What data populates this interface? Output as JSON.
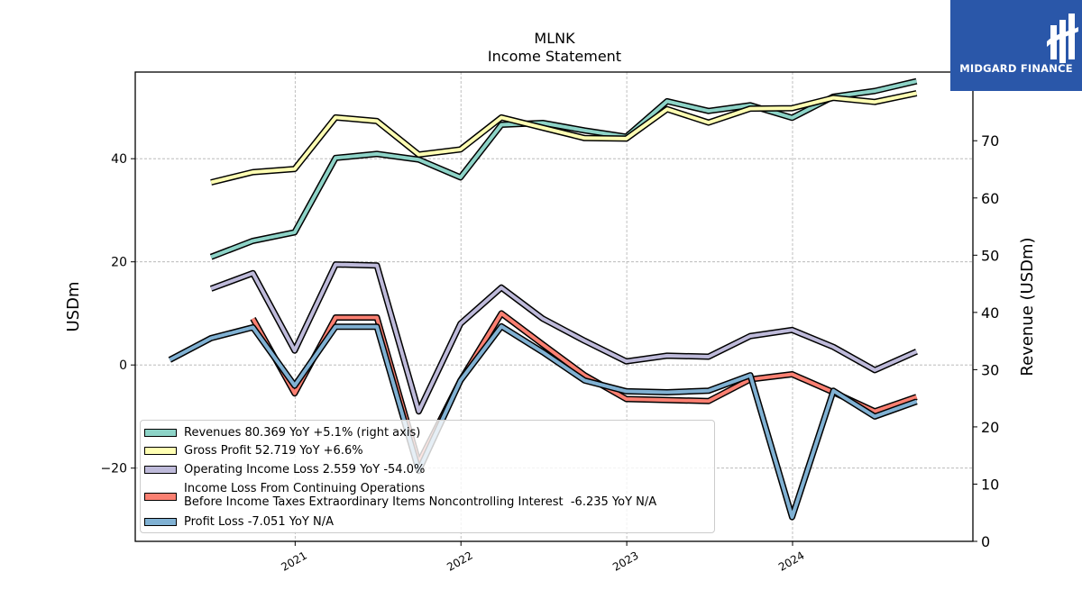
{
  "chart_data": {
    "type": "line",
    "title": "MLNK",
    "subtitle": "Income Statement",
    "ylabel": "USDm",
    "ylabel_right": "Revenue (USDm)",
    "ylim": [
      -34.2,
      56.8
    ],
    "ylim_right": [
      0,
      82
    ],
    "yticks": [
      -20,
      0,
      20,
      40
    ],
    "yticks_right": [
      0,
      10,
      20,
      30,
      40,
      50,
      60,
      70
    ],
    "xlim": [
      "2020-01-15",
      "2025-02-01"
    ],
    "xticks": [
      "2021-01-01",
      "2022-01-01",
      "2023-01-01",
      "2024-01-01"
    ],
    "xtick_labels": [
      "2021",
      "2022",
      "2023",
      "2024"
    ],
    "grid": true,
    "legend_position": "lower-left",
    "series": [
      {
        "name": "Revenues",
        "legend_label": "Revenues  80.369 YoY +5.1% (right axis)",
        "axis": "right",
        "color": "#8dd3c7",
        "x": [
          "2020-06-30",
          "2020-09-30",
          "2020-12-31",
          "2021-03-31",
          "2021-06-30",
          "2021-09-30",
          "2021-12-31",
          "2022-03-31",
          "2022-06-30",
          "2022-09-30",
          "2022-12-31",
          "2023-03-31",
          "2023-06-30",
          "2023-09-30",
          "2023-12-31",
          "2024-03-31",
          "2024-06-30",
          "2024-09-30"
        ],
        "y": [
          49.7,
          52.5,
          54.0,
          67.0,
          67.7,
          66.7,
          63.6,
          72.8,
          73.1,
          71.8,
          70.7,
          76.9,
          75.2,
          76.2,
          74.0,
          77.7,
          78.7,
          80.4
        ]
      },
      {
        "name": "Gross Profit",
        "legend_label": "Gross Profit  52.719 YoY +6.6%",
        "axis": "left",
        "color": "#ffffb3",
        "x": [
          "2020-06-30",
          "2020-09-30",
          "2020-12-31",
          "2021-03-31",
          "2021-06-30",
          "2021-09-30",
          "2021-12-31",
          "2022-03-31",
          "2022-06-30",
          "2022-09-30",
          "2022-12-31",
          "2023-03-31",
          "2023-06-30",
          "2023-09-30",
          "2023-12-31",
          "2024-03-31",
          "2024-06-30",
          "2024-09-30"
        ],
        "y": [
          35.4,
          37.4,
          38.0,
          48.0,
          47.3,
          40.8,
          41.8,
          48.0,
          46.0,
          44.0,
          43.9,
          49.6,
          47.0,
          49.7,
          49.8,
          51.8,
          51.0,
          52.7
        ]
      },
      {
        "name": "Operating Income Loss",
        "legend_label": "Operating Income Loss  2.559 YoY -54.0%",
        "axis": "left",
        "color": "#bebada",
        "x": [
          "2020-06-30",
          "2020-09-30",
          "2020-12-31",
          "2021-03-31",
          "2021-06-30",
          "2021-09-30",
          "2021-12-31",
          "2022-03-31",
          "2022-06-30",
          "2022-09-30",
          "2022-12-31",
          "2023-03-31",
          "2023-06-30",
          "2023-09-30",
          "2023-12-31",
          "2024-03-31",
          "2024-06-30",
          "2024-09-30"
        ],
        "y": [
          14.8,
          17.8,
          2.8,
          19.5,
          19.3,
          -9.0,
          8.0,
          15.0,
          9.0,
          4.7,
          0.7,
          1.8,
          1.6,
          5.6,
          6.8,
          3.5,
          -1.0,
          2.6
        ]
      },
      {
        "name": "Income Loss From Continuing Operations Before Income Taxes Extraordinary Items Noncontrolling Interest",
        "legend_label": "Income Loss From Continuing Operations\nBefore Income Taxes Extraordinary Items Noncontrolling Interest  -6.235 YoY N/A",
        "axis": "left",
        "color": "#fb8072",
        "x": [
          "2020-09-30",
          "2020-12-31",
          "2021-03-31",
          "2021-06-30",
          "2021-09-30",
          "2021-12-31",
          "2022-03-31",
          "2022-06-30",
          "2022-09-30",
          "2022-12-31",
          "2023-03-31",
          "2023-06-30",
          "2023-09-30",
          "2023-12-31",
          "2024-03-31",
          "2024-06-30",
          "2024-09-30"
        ],
        "y": [
          9.0,
          -5.5,
          9.2,
          9.2,
          -19.0,
          -3.0,
          10.0,
          4.0,
          -2.0,
          -6.6,
          -6.8,
          -7.0,
          -2.8,
          -1.8,
          -5.3,
          -9.0,
          -6.2
        ]
      },
      {
        "name": "Profit Loss",
        "legend_label": "Profit Loss  -7.051 YoY N/A",
        "axis": "left",
        "color": "#80b1d3",
        "x": [
          "2020-03-31",
          "2020-06-30",
          "2020-09-30",
          "2020-12-31",
          "2021-03-31",
          "2021-06-30",
          "2021-09-30",
          "2021-12-31",
          "2022-03-31",
          "2022-06-30",
          "2022-09-30",
          "2022-12-31",
          "2023-03-31",
          "2023-06-30",
          "2023-09-30",
          "2023-12-31",
          "2024-03-31",
          "2024-06-30",
          "2024-09-30"
        ],
        "y": [
          1.0,
          5.2,
          7.3,
          -4.0,
          7.4,
          7.4,
          -20.5,
          -3.0,
          7.5,
          2.5,
          -3.0,
          -5.1,
          -5.3,
          -5.0,
          -2.0,
          -29.5,
          -5.0,
          -10.0,
          -7.1
        ]
      }
    ]
  },
  "logo": {
    "text": "MIDGARD FINANCE",
    "background": "#2a57a9"
  }
}
